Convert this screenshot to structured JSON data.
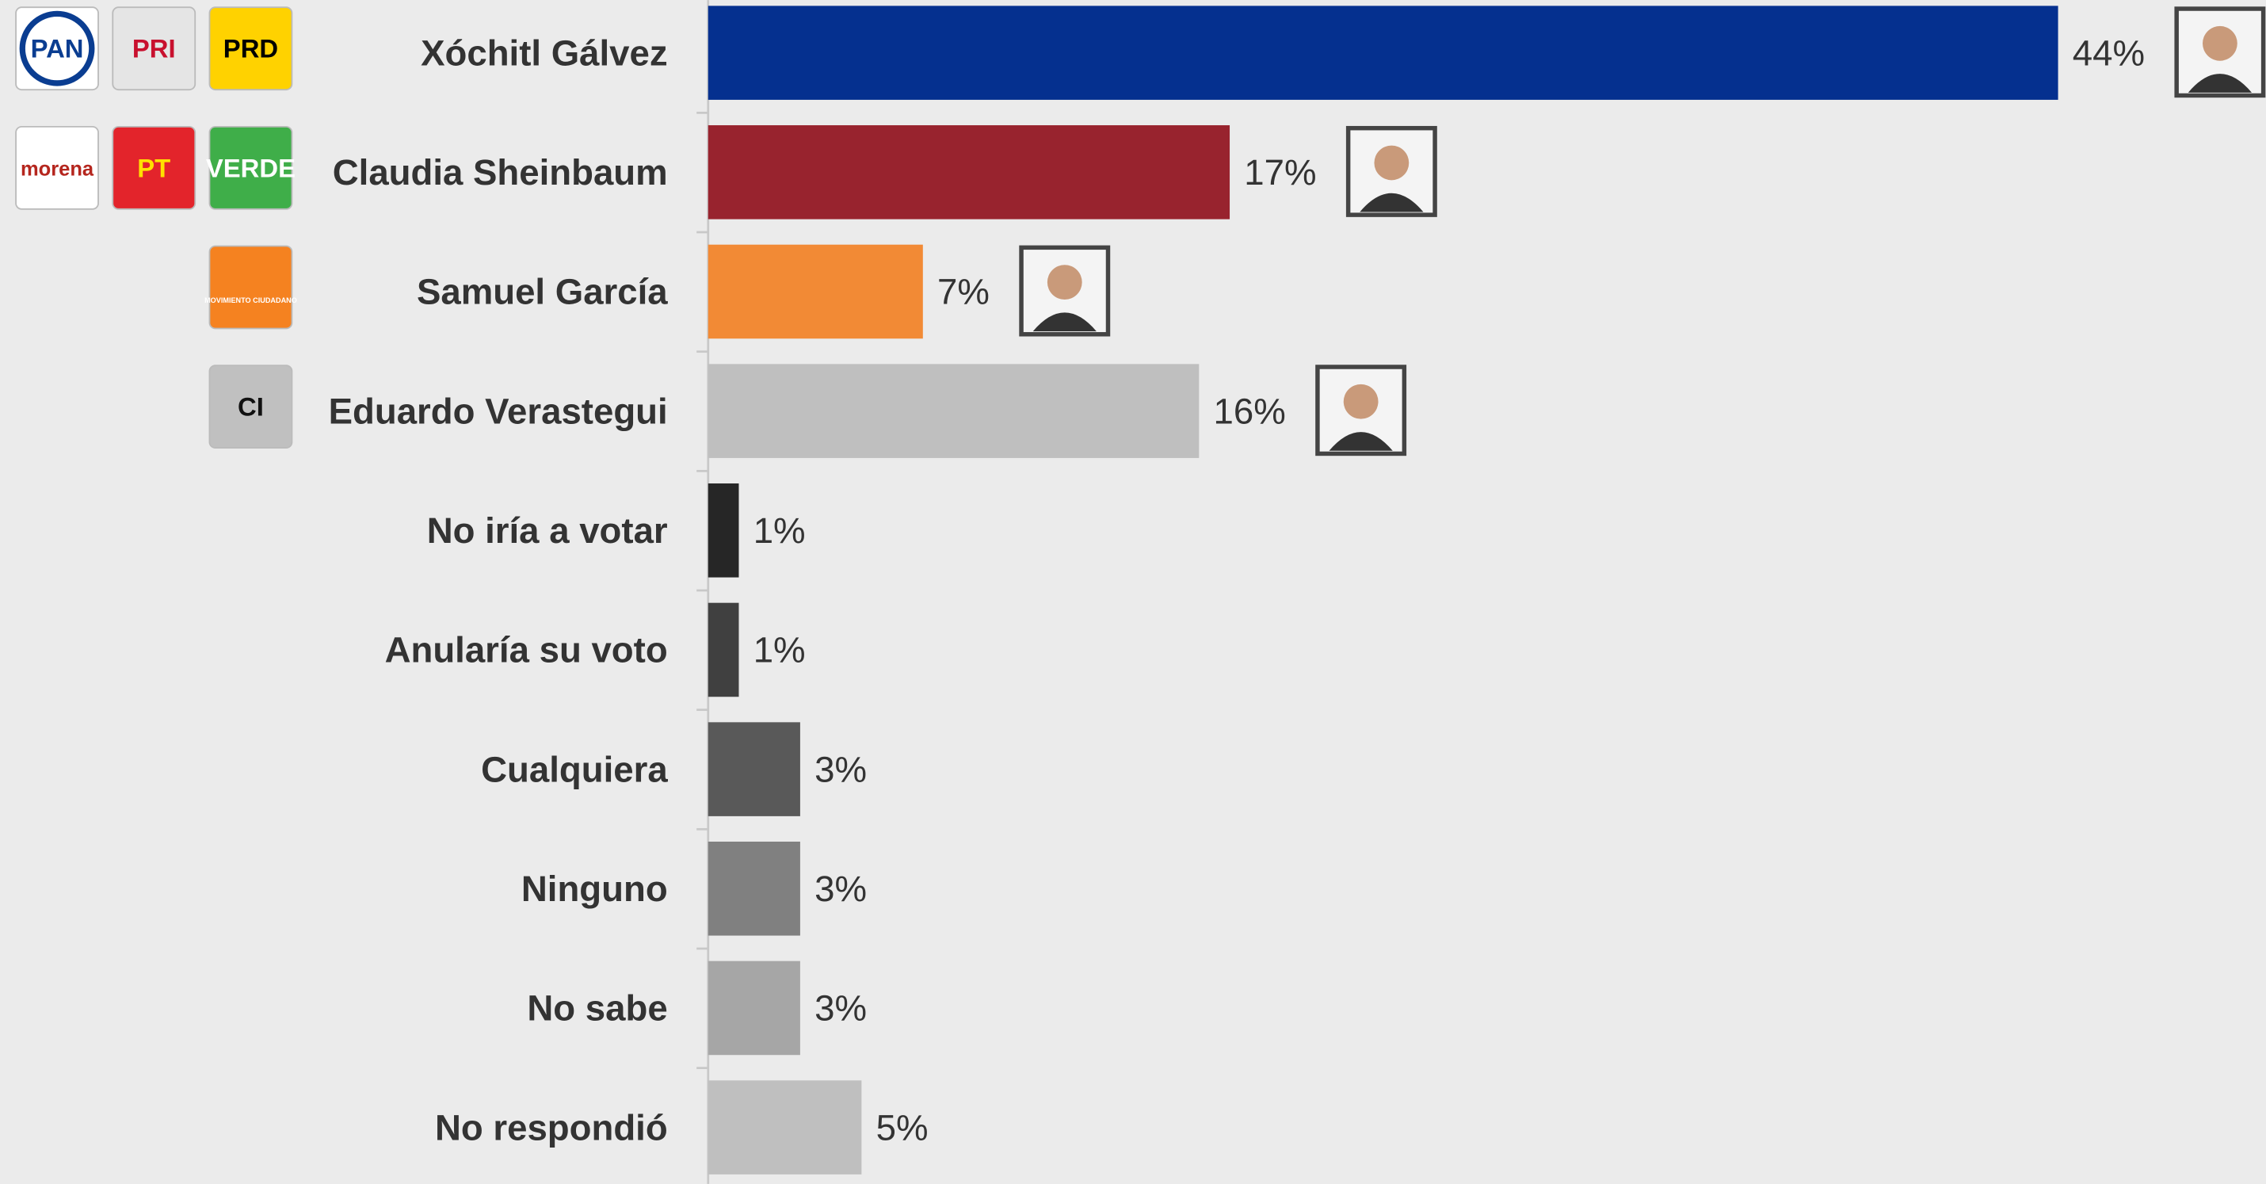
{
  "chart_data": {
    "type": "bar",
    "orientation": "horizontal",
    "categories": [
      "Xóchitl Gálvez",
      "Claudia Sheinbaum",
      "Samuel García",
      "Eduardo Verastegui",
      "No iría a votar",
      "Anularía su voto",
      "Cualquiera",
      "Ninguno",
      "No sabe",
      "No respondió"
    ],
    "values": [
      44,
      17,
      7,
      16,
      1,
      1,
      3,
      3,
      3,
      5
    ],
    "value_labels": [
      "44%",
      "17%",
      "7%",
      "16%",
      "1%",
      "1%",
      "3%",
      "3%",
      "3%",
      "5%"
    ],
    "colors": [
      "#05308f",
      "#98232e",
      "#f28a35",
      "#bfbfbf",
      "#262626",
      "#404040",
      "#595959",
      "#808080",
      "#a6a6a6",
      "#bfbfbf"
    ],
    "logos": [
      [
        "PAN",
        "PRI",
        "PRD"
      ],
      [
        "morena",
        "PT",
        "VERDE"
      ],
      [
        "MOVIMIENTO CIUDADANO"
      ],
      [
        "CI"
      ],
      [],
      [],
      [],
      [],
      [],
      []
    ]
  }
}
